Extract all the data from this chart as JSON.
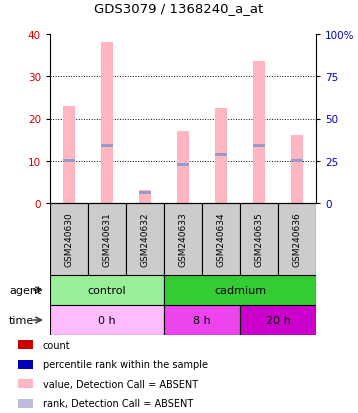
{
  "title": "GDS3079 / 1368240_a_at",
  "samples": [
    "GSM240630",
    "GSM240631",
    "GSM240632",
    "GSM240633",
    "GSM240634",
    "GSM240635",
    "GSM240636"
  ],
  "pink_bar_values": [
    23,
    38,
    3,
    17,
    22.5,
    33.5,
    16
  ],
  "blue_bar_values": [
    10,
    13.5,
    2.5,
    9,
    11.5,
    13.5,
    10
  ],
  "pink_bar_color": "#FFB6C1",
  "blue_bar_color": "#9999CC",
  "ylim_left": [
    0,
    40
  ],
  "ylim_right": [
    0,
    100
  ],
  "yticks_left": [
    0,
    10,
    20,
    30,
    40
  ],
  "yticks_right": [
    0,
    25,
    50,
    75,
    100
  ],
  "ytick_labels_right": [
    "0",
    "25",
    "50",
    "75",
    "100%"
  ],
  "grid_lines": [
    10,
    20,
    30
  ],
  "agent_groups": [
    {
      "label": "control",
      "start": 0,
      "end": 3,
      "color": "#99EE99"
    },
    {
      "label": "cadmium",
      "start": 3,
      "end": 7,
      "color": "#33CC33"
    }
  ],
  "time_groups": [
    {
      "label": "0 h",
      "start": 0,
      "end": 3,
      "color": "#FFBBFF"
    },
    {
      "label": "8 h",
      "start": 3,
      "end": 5,
      "color": "#EE44EE"
    },
    {
      "label": "20 h",
      "start": 5,
      "end": 7,
      "color": "#CC00CC"
    }
  ],
  "legend_colors": [
    "#CC0000",
    "#0000BB",
    "#FFB6C1",
    "#BBBBDD"
  ],
  "legend_labels": [
    "count",
    "percentile rank within the sample",
    "value, Detection Call = ABSENT",
    "rank, Detection Call = ABSENT"
  ],
  "left_tick_color": "#CC0000",
  "right_tick_color": "#0000CC",
  "sample_box_color": "#CCCCCC",
  "bar_width": 0.3
}
